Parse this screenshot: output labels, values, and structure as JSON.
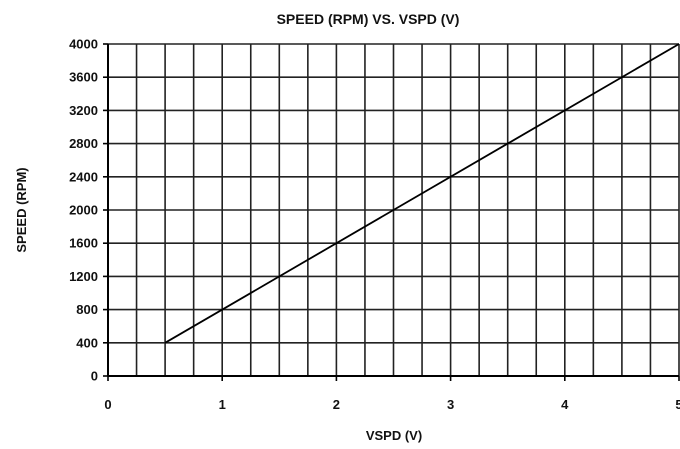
{
  "chart_data": {
    "type": "line",
    "title": "SPEED (RPM) VS. VSPD (V)",
    "xlabel": "VSPD (V)",
    "ylabel": "SPEED (RPM)",
    "xlim": [
      0,
      5
    ],
    "ylim": [
      0,
      4000
    ],
    "x_ticks": [
      "0",
      "1",
      "2",
      "3",
      "4",
      "5"
    ],
    "y_ticks": [
      "0",
      "400",
      "800",
      "1200",
      "1600",
      "2000",
      "2400",
      "2800",
      "3200",
      "3600",
      "4000"
    ],
    "x_ticks_values": [
      0,
      1,
      2,
      3,
      4,
      5
    ],
    "y_ticks_values": [
      0,
      400,
      800,
      1200,
      1600,
      2000,
      2400,
      2800,
      3200,
      3600,
      4000
    ],
    "x_grid_step": 0.25,
    "grid": true,
    "legend": "none",
    "series": [
      {
        "x": [
          0.5,
          5
        ],
        "y": [
          400,
          4000
        ]
      }
    ]
  }
}
